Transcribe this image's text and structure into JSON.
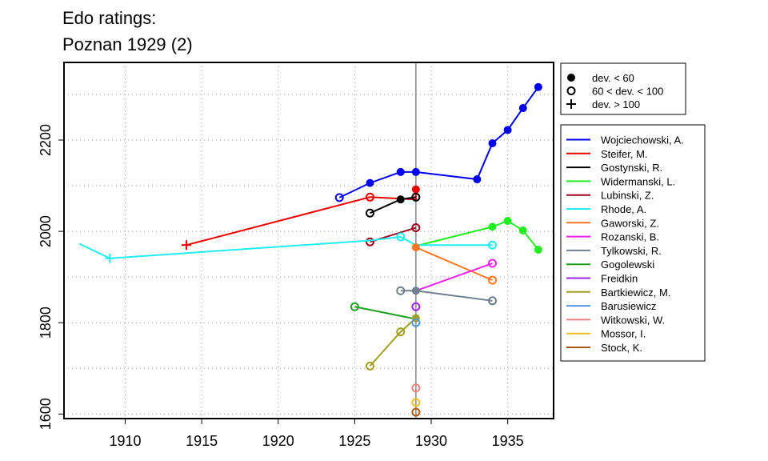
{
  "chart_data": {
    "type": "line",
    "title_lines": [
      "Edo ratings:",
      "Poznan 1929 (2)"
    ],
    "xlabel": "",
    "ylabel": "",
    "xlim": [
      1906,
      1938
    ],
    "ylim": [
      1590,
      2370
    ],
    "x_ticks": [
      1910,
      1915,
      1920,
      1925,
      1930,
      1935
    ],
    "y_ticks": [
      1600,
      1800,
      2000,
      2200
    ],
    "grid": true,
    "reference_x": 1929,
    "dev_legend": {
      "placement": "top-right",
      "entries": [
        {
          "marker": "filled",
          "label": "dev. < 60"
        },
        {
          "marker": "open",
          "label": "60 < dev. < 100"
        },
        {
          "marker": "plus",
          "label": "dev. > 100"
        }
      ]
    },
    "series_legend_placement": "right",
    "series": [
      {
        "name": "Wojciechowski, A.",
        "color": "#0000EE",
        "points": [
          [
            1924,
            2074,
            "open"
          ],
          [
            1926,
            2106,
            "filled"
          ],
          [
            1928,
            2130,
            "filled"
          ],
          [
            1929,
            2130,
            "filled"
          ],
          [
            1933,
            2114,
            "filled"
          ],
          [
            1934,
            2193,
            "filled"
          ],
          [
            1935,
            2222,
            "filled"
          ],
          [
            1936,
            2270,
            "filled"
          ],
          [
            1937,
            2316,
            "filled"
          ]
        ]
      },
      {
        "name": "Steifer, M.",
        "color": "#EE0000",
        "points": [
          [
            1914,
            1970,
            "plus"
          ],
          [
            1926,
            2075,
            "open"
          ],
          [
            1929,
            2070,
            "none"
          ],
          [
            1929,
            2092,
            "filled"
          ]
        ]
      },
      {
        "name": "Gostynski, R.",
        "color": "#000000",
        "points": [
          [
            1926,
            2040,
            "open"
          ],
          [
            1928,
            2070,
            "filled"
          ],
          [
            1929,
            2075,
            "open"
          ]
        ]
      },
      {
        "name": "Widermanski, L.",
        "color": "#22EE22",
        "points": [
          [
            1929,
            1968,
            "none"
          ],
          [
            1934,
            2010,
            "filled"
          ],
          [
            1935,
            2023,
            "filled"
          ],
          [
            1936,
            2002,
            "filled"
          ],
          [
            1937,
            1960,
            "filled"
          ]
        ]
      },
      {
        "name": "Lubinski, Z.",
        "color": "#A00020",
        "points": [
          [
            1926,
            1977,
            "open"
          ],
          [
            1929,
            2008,
            "open"
          ]
        ]
      },
      {
        "name": "Rhode, A.",
        "color": "#22EEEE",
        "points": [
          [
            1907,
            1973,
            "none"
          ],
          [
            1909,
            1941,
            "plus"
          ],
          [
            1926,
            1980,
            "none"
          ],
          [
            1928,
            1988,
            "open"
          ],
          [
            1929,
            1970,
            "none"
          ],
          [
            1934,
            1970,
            "open"
          ]
        ]
      },
      {
        "name": "Gaworski, Z.",
        "color": "#FF7722",
        "points": [
          [
            1929,
            1965,
            "filled"
          ],
          [
            1934,
            1893,
            "open"
          ]
        ]
      },
      {
        "name": "Rozanski, B.",
        "color": "#EE22EE",
        "points": [
          [
            1929,
            1870,
            "none"
          ],
          [
            1934,
            1930,
            "open"
          ]
        ]
      },
      {
        "name": "Tylkowski, R.",
        "color": "#708090",
        "points": [
          [
            1928,
            1870,
            "open"
          ],
          [
            1929,
            1870,
            "filled"
          ],
          [
            1934,
            1848,
            "open"
          ]
        ]
      },
      {
        "name": "Gogolewski",
        "color": "#22A022",
        "points": [
          [
            1925,
            1835,
            "open"
          ],
          [
            1929,
            1808,
            "none"
          ]
        ]
      },
      {
        "name": "Freidkin",
        "color": "#A020EE",
        "points": [
          [
            1929,
            1835,
            "open"
          ]
        ]
      },
      {
        "name": "Bartkiewicz, M.",
        "color": "#A0A020",
        "points": [
          [
            1926,
            1705,
            "open"
          ],
          [
            1928,
            1780,
            "open"
          ],
          [
            1929,
            1810,
            "filled"
          ]
        ]
      },
      {
        "name": "Barusiewicz",
        "color": "#5599DD",
        "points": [
          [
            1929,
            1800,
            "open"
          ]
        ]
      },
      {
        "name": "Witkowski, W.",
        "color": "#F08080",
        "points": [
          [
            1929,
            1657,
            "open"
          ]
        ]
      },
      {
        "name": "Mossor, I.",
        "color": "#F0C020",
        "points": [
          [
            1929,
            1625,
            "open"
          ]
        ]
      },
      {
        "name": "Stock, K.",
        "color": "#B05A10",
        "points": [
          [
            1929,
            1604,
            "open"
          ]
        ]
      }
    ]
  }
}
